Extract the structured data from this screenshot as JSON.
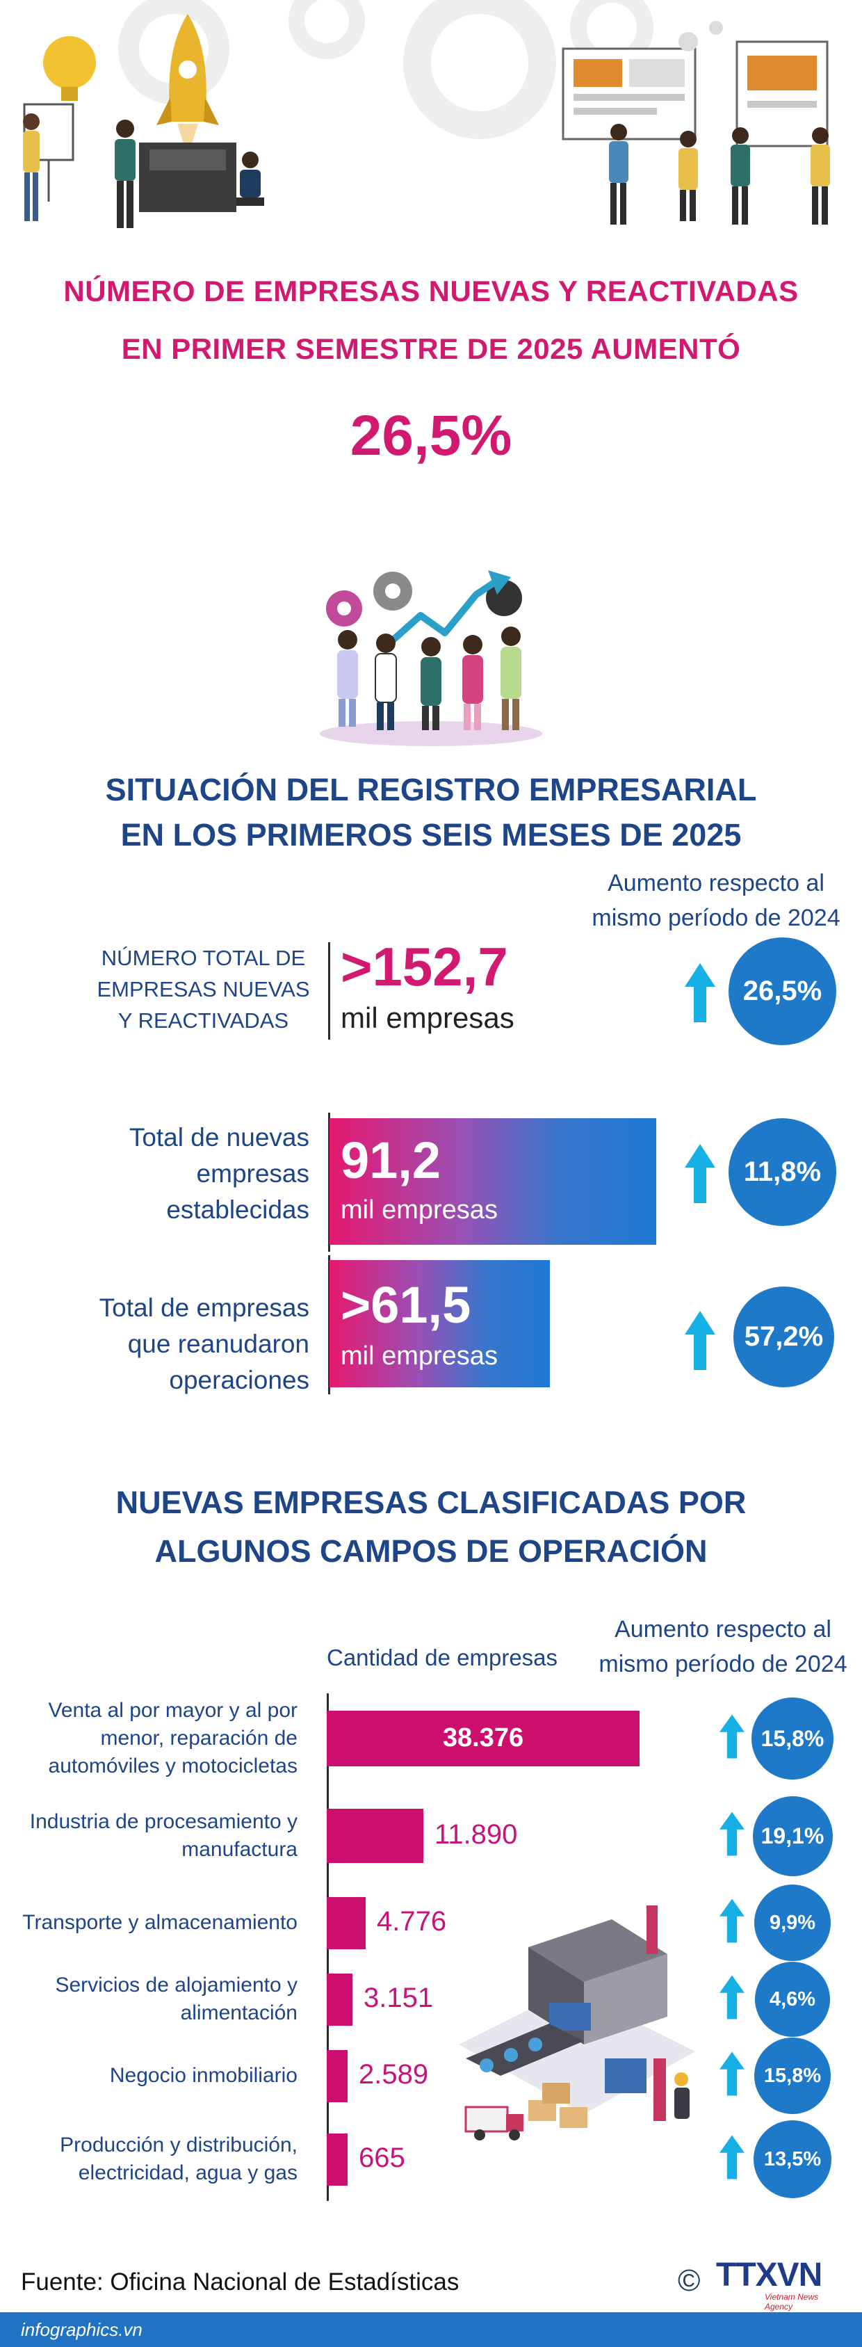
{
  "title": {
    "line1": "NÚMERO DE EMPRESAS NUEVAS Y REACTIVADAS",
    "line2": "EN PRIMER SEMESTRE DE 2025 AUMENTÓ",
    "headline_value": "26,5%"
  },
  "section1": {
    "title_line1": "SITUACIÓN DEL REGISTRO EMPRESARIAL",
    "title_line2": "EN LOS PRIMEROS SEIS MESES DE 2025",
    "increase_header_line1": "Aumento respecto al",
    "increase_header_line2": "mismo período de 2024",
    "total": {
      "label_lines": [
        "NÚMERO TOTAL DE",
        "EMPRESAS NUEVAS",
        "Y REACTIVADAS"
      ],
      "value": ">152,7",
      "unit": "mil empresas",
      "increase": "26,5%"
    },
    "new": {
      "label_lines": [
        "Total de nuevas",
        "empresas",
        "establecidas"
      ],
      "value": "91,2",
      "unit": "mil empresas",
      "increase": "11,8%"
    },
    "resumed": {
      "label_lines": [
        "Total de empresas",
        "que reanudaron",
        "operaciones"
      ],
      "value": ">61,5",
      "unit": "mil empresas",
      "increase": "57,2%"
    }
  },
  "section2": {
    "title_line1": "NUEVAS EMPRESAS CLASIFICADAS POR",
    "title_line2": "ALGUNOS CAMPOS DE OPERACIÓN",
    "quantity_header": "Cantidad de empresas",
    "increase_header_line1": "Aumento respecto al",
    "increase_header_line2": "mismo período de 2024"
  },
  "chart_data": [
    {
      "type": "bar",
      "title": "SITUACIÓN DEL REGISTRO EMPRESARIAL EN LOS PRIMEROS SEIS MESES DE 2025",
      "categories": [
        "Total de nuevas empresas establecidas",
        "Total de empresas que reanudaron operaciones"
      ],
      "values": [
        91.2,
        61.5
      ],
      "unit": "mil empresas",
      "increase_pct": [
        "11,8%",
        "57,2%"
      ]
    },
    {
      "type": "bar",
      "orientation": "horizontal",
      "title": "NUEVAS EMPRESAS CLASIFICADAS POR ALGUNOS CAMPOS DE OPERACIÓN",
      "xlabel": "Cantidad de empresas",
      "categories": [
        [
          "Venta al por mayor y al por",
          "menor, reparación de",
          "automóviles y motocicletas"
        ],
        [
          "Industria de procesamiento y",
          "manufactura"
        ],
        [
          "Transporte y almacenamiento"
        ],
        [
          "Servicios de alojamiento y",
          "alimentación"
        ],
        [
          "Negocio inmobiliario"
        ],
        [
          "Producción y distribución,",
          "electricidad, agua y gas"
        ]
      ],
      "values": [
        38376,
        11890,
        4776,
        3151,
        2589,
        665
      ],
      "value_labels": [
        "38.376",
        "11.890",
        "4.776",
        "3.151",
        "2.589",
        "665"
      ],
      "increase_pct": [
        "15,8%",
        "19,1%",
        "9,9%",
        "4,6%",
        "15,8%",
        "13,5%"
      ]
    }
  ],
  "footer": {
    "source": "Fuente: Oficina Nacional de Estadísticas",
    "copyright": "©",
    "logo_text": "TTXVN",
    "logo_sub": "Vietnam News Agency",
    "site": "infographics.vn"
  },
  "colors": {
    "pink": "#d1196f",
    "navy": "#1d4587",
    "blue": "#1e79c8",
    "bar": "#cc0f6c"
  }
}
